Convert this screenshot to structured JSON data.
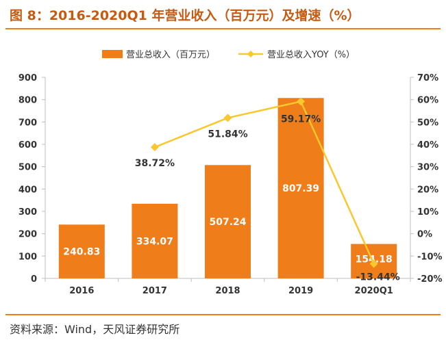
{
  "title": "图 8：2016-2020Q1 年营业收入（百万元）及增速（%）",
  "source": "资料来源：Wind，天风证券研究所",
  "colors": {
    "bar": "#ee7d1a",
    "line": "#fac72d",
    "accent": "#c55a11",
    "text": "#333333"
  },
  "chart_data": {
    "type": "bar",
    "categories": [
      "2016",
      "2017",
      "2018",
      "2019",
      "2020Q1"
    ],
    "series": [
      {
        "name": "营业总收入（百万元）",
        "type": "bar",
        "axis": "left",
        "values": [
          240.83,
          334.07,
          507.24,
          807.39,
          154.18
        ],
        "labels": [
          "240.83",
          "334.07",
          "507.24",
          "807.39",
          "154.18"
        ]
      },
      {
        "name": "营业总收入YOY（%）",
        "type": "line",
        "axis": "right",
        "values": [
          null,
          38.72,
          51.84,
          59.17,
          -13.44
        ],
        "labels": [
          "",
          "38.72%",
          "51.84%",
          "59.17%",
          "-13.44%"
        ]
      }
    ],
    "y_left": {
      "min": 0,
      "max": 900,
      "ticks": [
        "0",
        "100",
        "200",
        "300",
        "400",
        "500",
        "600",
        "700",
        "800",
        "900"
      ]
    },
    "y_right": {
      "min": -20,
      "max": 70,
      "ticks": [
        "-20%",
        "-10%",
        "0%",
        "10%",
        "20%",
        "30%",
        "40%",
        "50%",
        "60%",
        "70%"
      ]
    },
    "legend": "top",
    "grid": false
  }
}
